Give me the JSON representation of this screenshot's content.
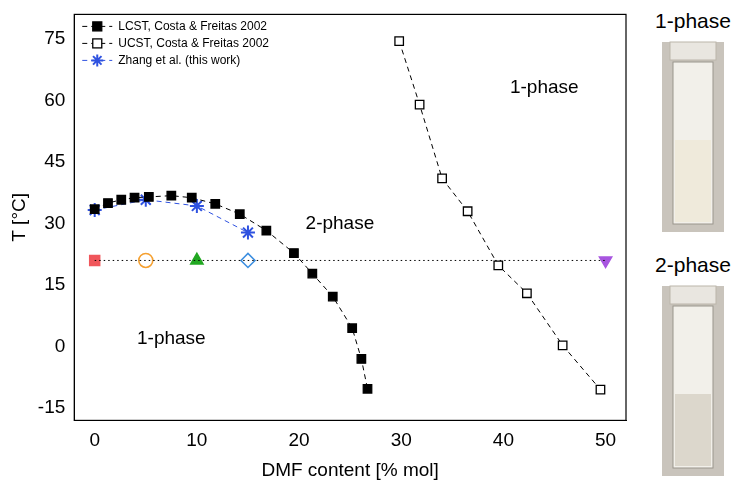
{
  "chart_data": {
    "type": "scatter",
    "x_label": "DMF content [% mol]",
    "y_label": "T [°C]",
    "xlim": [
      -2,
      52
    ],
    "xticks": [
      0,
      10,
      20,
      30,
      40,
      50
    ],
    "ylim": [
      -18,
      81
    ],
    "yticks": [
      -15,
      0,
      15,
      30,
      45,
      60,
      75
    ],
    "grid": false,
    "legend": "upper left",
    "series": [
      {
        "name": "LCST, Costa & Freitas 2002",
        "color": "#000000",
        "marker": "square",
        "line_style": "dashed",
        "x": [
          0,
          1.3,
          2.6,
          3.9,
          5.3,
          7.5,
          9.5,
          11.8,
          14.2,
          16.8,
          19.5,
          21.3,
          23.3,
          25.2,
          26.1,
          26.7
        ],
        "values": [
          33.5,
          35,
          35.8,
          36.3,
          36.5,
          36.8,
          36.3,
          34.8,
          32.3,
          28.3,
          22.8,
          17.8,
          12.2,
          4.5,
          -3,
          -10.3
        ]
      },
      {
        "name": "UCST, Costa & Freitas 2002",
        "color": "#000000",
        "marker": "square-open",
        "line_style": "dashed",
        "x": [
          29.8,
          31.8,
          34,
          36.5,
          39.5,
          42.3,
          45.8,
          49.5
        ],
        "values": [
          74.5,
          59,
          41,
          33,
          19.8,
          13,
          0.3,
          -10.5
        ]
      },
      {
        "name": "Zhang et al. (this work)",
        "color": "#2f52e0",
        "marker": "star",
        "line_style": "dashed",
        "x": [
          0,
          5,
          10,
          15
        ],
        "values": [
          33.3,
          35.8,
          34.3,
          27.8
        ]
      }
    ],
    "reference_line": {
      "x": [
        0,
        50
      ],
      "values": [
        21,
        21
      ],
      "color": "#000000",
      "line_style": "dotted"
    },
    "markers": [
      {
        "x": 0,
        "y": 21,
        "color": "#f0565b",
        "marker": "square"
      },
      {
        "x": 5,
        "y": 21,
        "color": "#f5a030",
        "marker": "circle-open"
      },
      {
        "x": 10,
        "y": 21,
        "color": "#22a822",
        "marker": "triangle"
      },
      {
        "x": 15,
        "y": 21,
        "color": "#3d8fe0",
        "marker": "diamond-open"
      },
      {
        "x": 50,
        "y": 21,
        "color": "#a855e0",
        "marker": "triangle-down"
      }
    ],
    "annotations": [
      {
        "text": "1-phase",
        "x": 7.5,
        "y": 2
      },
      {
        "text": "2-phase",
        "x": 24,
        "y": 30
      },
      {
        "text": "1-phase",
        "x": 44,
        "y": 63
      }
    ]
  },
  "photo_labels": [
    "1-phase",
    "2-phase"
  ]
}
